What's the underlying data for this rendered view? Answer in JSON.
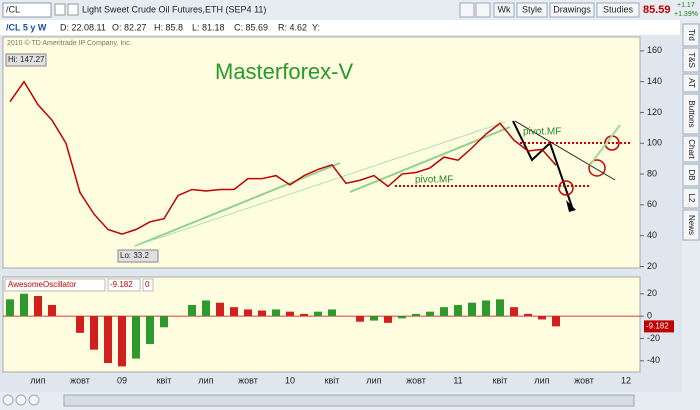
{
  "toolbar": {
    "symbol": "/CL",
    "description": "Light Sweet Crude Oil Futures,ETH (SEP4 11)",
    "buttons": [
      "Wk",
      "Style",
      "Drawings",
      "Studies"
    ],
    "last": "85.59",
    "change": "+1.17",
    "change_pct": "+1.39%"
  },
  "side_tabs": [
    "Trd",
    "T&S",
    "AT",
    "Buttons",
    "Chart",
    "DB",
    "L2",
    "News"
  ],
  "chart_data": [
    {
      "type": "line",
      "title": "Masterforex-V",
      "info": [
        "/CL 5 y W",
        "D: 22.08.11",
        "O: 82.27",
        "H: 85.8",
        "L: 81.18",
        "C: 85.69",
        "R: 4.62",
        "Y:"
      ],
      "copyright": "2010 © TD Ameritrade IP Company, Inc.",
      "annotations": [
        "Hi: 147.27",
        "Lo: 33.2",
        "pivot.MF",
        "pivot.MF"
      ],
      "categories": [
        null,
        null,
        "лип",
        null,
        null,
        "жовт",
        null,
        null,
        "09",
        null,
        null,
        "квіт",
        null,
        null,
        "лип",
        null,
        null,
        "жовт",
        null,
        null,
        "10",
        null,
        null,
        "квіт",
        null,
        null,
        "лип",
        null,
        null,
        "жовт",
        null,
        null,
        "11",
        null,
        null,
        "квіт",
        null,
        null,
        "лип",
        null,
        null,
        "жовт",
        null,
        null,
        "12"
      ],
      "values": [
        127,
        140,
        125,
        115,
        100,
        68,
        54,
        44,
        41,
        44,
        49,
        51,
        66,
        70,
        69,
        70,
        70,
        77,
        77,
        79,
        73,
        79,
        83,
        86,
        74,
        76,
        79,
        72,
        80,
        81,
        84,
        91,
        89,
        97,
        106,
        113,
        102,
        95,
        96,
        85.69,
        null,
        null,
        null,
        null,
        null
      ],
      "color": "#c00000",
      "ylim": [
        19,
        169
      ],
      "yticks": [
        20,
        40,
        60,
        80,
        100,
        120,
        140,
        160
      ]
    },
    {
      "type": "bar",
      "title": "AwesomeOscillator",
      "header": [
        "-9.182",
        "0"
      ],
      "current_label": "-9.182",
      "values": [
        15,
        20,
        18,
        10,
        0,
        -15,
        -30,
        -42,
        -45,
        -38,
        -25,
        -10,
        0,
        10,
        14,
        12,
        8,
        6,
        5,
        6,
        4,
        2,
        4,
        6,
        0,
        -5,
        -4,
        -6,
        -2,
        2,
        4,
        8,
        10,
        12,
        14,
        15,
        8,
        2,
        -3,
        -9.182,
        null,
        null,
        null,
        null,
        null
      ],
      "up_color": "#2e9a2e",
      "down_color": "#d02020",
      "ylim": [
        -50,
        35
      ],
      "yticks": [
        20,
        0,
        -20,
        -40
      ]
    }
  ]
}
